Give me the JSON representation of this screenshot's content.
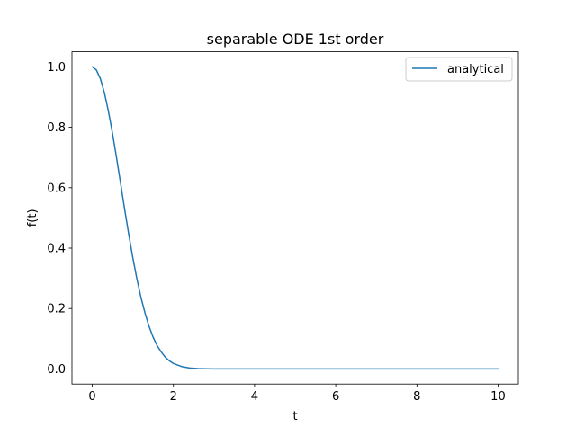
{
  "chart_data": {
    "type": "line",
    "title": "separable ODE 1st order",
    "xlabel": "t",
    "ylabel": "f(t)",
    "xlim": [
      -0.5,
      10.5
    ],
    "ylim": [
      -0.05,
      1.05
    ],
    "xticks": [
      0,
      2,
      4,
      6,
      8,
      10
    ],
    "yticks": [
      0.0,
      0.2,
      0.4,
      0.6,
      0.8,
      1.0
    ],
    "xtick_labels": [
      "0",
      "2",
      "4",
      "6",
      "8",
      "10"
    ],
    "ytick_labels": [
      "0.0",
      "0.2",
      "0.4",
      "0.6",
      "0.8",
      "1.0"
    ],
    "grid": false,
    "legend_position": "top-right",
    "series": [
      {
        "name": "analytical",
        "color": "#1f77b4",
        "x": [
          0,
          0.1,
          0.2,
          0.3,
          0.4,
          0.5,
          0.6,
          0.7,
          0.8,
          0.9,
          1.0,
          1.1,
          1.2,
          1.3,
          1.4,
          1.5,
          1.6,
          1.7,
          1.8,
          1.9,
          2.0,
          2.2,
          2.4,
          2.6,
          2.8,
          3.0,
          3.5,
          4.0,
          5.0,
          6.0,
          7.0,
          8.0,
          9.0,
          10.0
        ],
        "y": [
          1.0,
          0.99,
          0.961,
          0.914,
          0.852,
          0.779,
          0.698,
          0.613,
          0.527,
          0.445,
          0.368,
          0.298,
          0.237,
          0.185,
          0.141,
          0.105,
          0.077,
          0.056,
          0.039,
          0.027,
          0.018,
          0.008,
          0.003,
          0.001,
          0.0004,
          0.0001,
          0.0,
          0.0,
          0.0,
          0.0,
          0.0,
          0.0,
          0.0,
          0.0
        ]
      }
    ]
  }
}
